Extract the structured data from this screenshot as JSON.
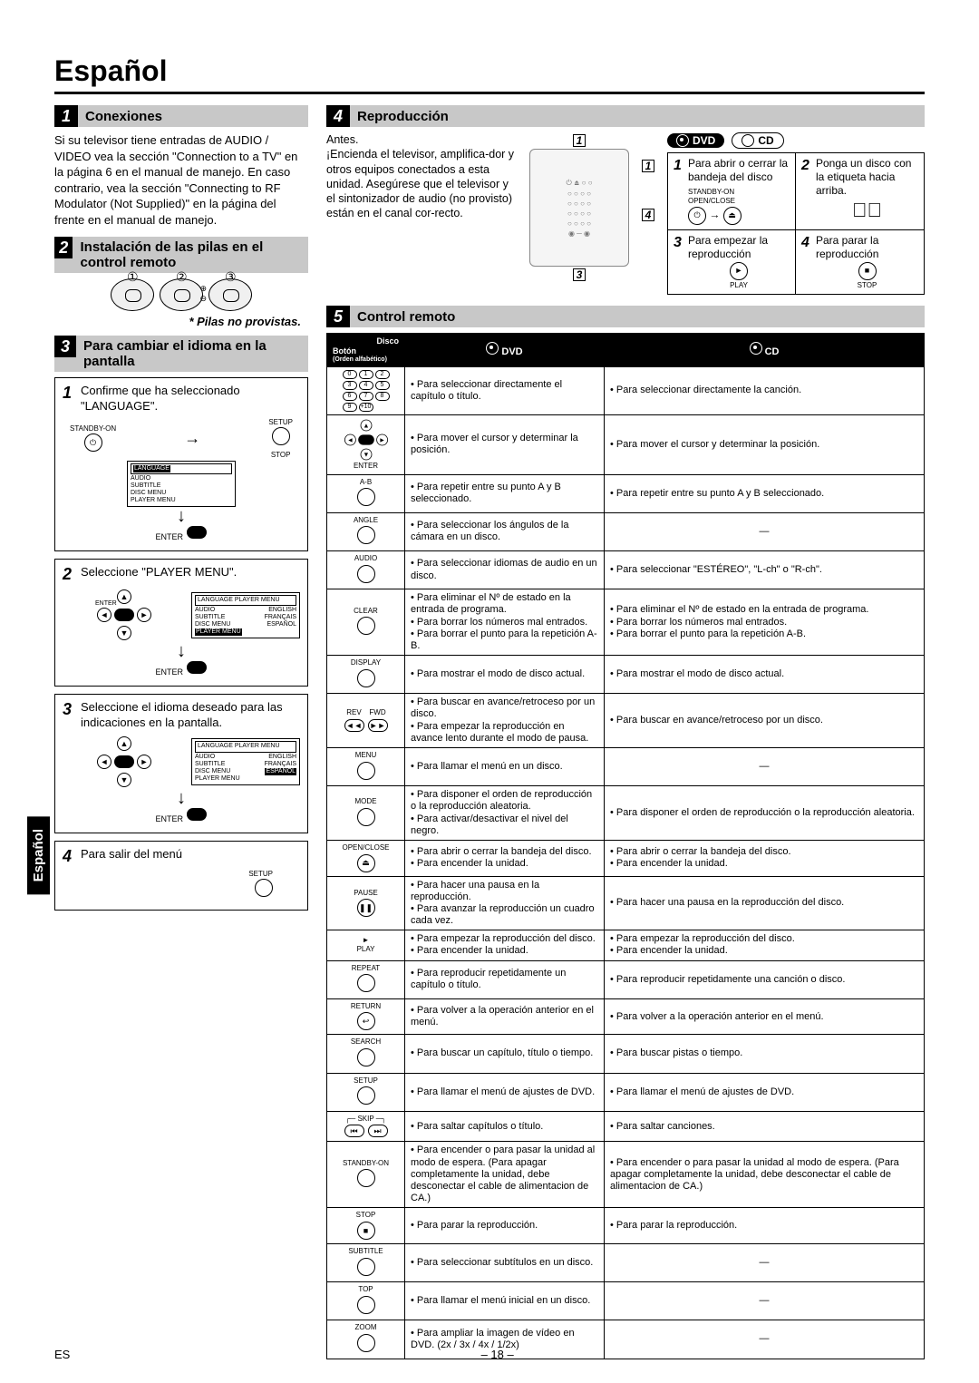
{
  "page": {
    "title": "Español",
    "footer_left": "ES",
    "footer_center": "– 18 –",
    "side_tab": "Español"
  },
  "s1": {
    "num": "1",
    "title": "Conexiones",
    "text": "Si su televisor tiene entradas de AUDIO / VIDEO vea la sección \"Connection to a TV\" en la página 6 en el manual de manejo. En caso contrario, vea la sección \"Connecting to RF Modulator (Not Supplied)\" en la página del frente en el manual de manejo."
  },
  "s2": {
    "num": "2",
    "title": "Instalación de las pilas en el control remoto",
    "note": "* Pilas no provistas."
  },
  "s3": {
    "num": "3",
    "title": "Para cambiar el idioma en la pantalla",
    "step1": {
      "n": "1",
      "text": "Confirme que ha seleccionado \"LANGUAGE\"."
    },
    "step2": {
      "n": "2",
      "text": "Seleccione \"PLAYER MENU\"."
    },
    "step3": {
      "n": "3",
      "text": "Seleccione el idioma deseado para las indicaciones en la pantalla."
    },
    "step4": {
      "n": "4",
      "text": "Para salir del menú"
    },
    "labels": {
      "standby": "STANDBY-ON",
      "setup": "SETUP",
      "stop": "STOP",
      "enter": "ENTER",
      "lang": "LANGUAGE",
      "audio": "AUDIO",
      "subtitle": "SUBTITLE",
      "discmenu": "DISC MENU",
      "playermenu": "PLAYER MENU",
      "english": "ENGLISH",
      "francais": "FRANÇAIS",
      "espanol": "ESPAÑOL",
      "lang_pm": "LANGUAGE  PLAYER MENU"
    }
  },
  "s4": {
    "num": "4",
    "title": "Reproducción",
    "antes": "Antes.",
    "intro": "¡Encienda el televisor, amplifica-dor y otros equipos conectados a esta unidad. Asegúrese que el televisor y el sintonizador de audio (no provisto) están en el canal cor-recto.",
    "dvd": "DVD",
    "cd": "CD",
    "g1": "Para abrir o cerrar la bandeja del disco",
    "g2": "Ponga un disco con la etiqueta hacia arriba.",
    "g3": "Para empezar la reproducción",
    "g4": "Para parar la reproducción",
    "g1n": "1",
    "g2n": "2",
    "g3n": "3",
    "g4n": "4",
    "lbl_standby": "STANDBY-ON",
    "lbl_open": "OPEN/CLOSE",
    "lbl_play": "PLAY",
    "lbl_stop": "STOP"
  },
  "s5": {
    "num": "5",
    "title": "Control remoto",
    "head_disc": "Disco",
    "head_boton": "Botón",
    "head_order": "(Orden alfabético)",
    "head_dvd": "DVD",
    "head_cd": "CD",
    "rows": [
      {
        "label": "0-9",
        "dvd": "• Para seleccionar directamente el capítulo o título.",
        "cd": "• Para seleccionar directamente la canción."
      },
      {
        "label": "ARROWS/ENTER",
        "dvd": "• Para mover el cursor y determinar la posición.",
        "cd": "• Para mover el cursor y determinar la posición."
      },
      {
        "label": "A-B",
        "dvd": "• Para repetir entre su punto A y B seleccionado.",
        "cd": "• Para repetir entre su punto A y B seleccionado."
      },
      {
        "label": "ANGLE",
        "dvd": "• Para seleccionar los ángulos de la cámara en un disco.",
        "cd": "—"
      },
      {
        "label": "AUDIO",
        "dvd": "• Para seleccionar idiomas de audio en un disco.",
        "cd": "• Para seleccionar \"ESTÉREO\", \"L-ch\" o \"R-ch\"."
      },
      {
        "label": "CLEAR",
        "dvd": "• Para eliminar el Nº de estado en la entrada de programa.\n• Para borrar los números mal entrados.\n• Para borrar el punto para la repetición A-B.",
        "cd": "• Para eliminar el Nº de estado en la entrada de programa.\n• Para borrar los números mal entrados.\n• Para borrar el punto para la repetición A-B."
      },
      {
        "label": "DISPLAY",
        "dvd": "• Para mostrar el modo de disco actual.",
        "cd": "• Para mostrar el modo de disco actual."
      },
      {
        "label": "REV ◄◄ / FWD ►►",
        "dvd": "• Para buscar en avance/retroceso por un disco.\n• Para empezar la reproducción en avance lento durante el modo de pausa.",
        "cd": "• Para buscar en avance/retroceso por un disco."
      },
      {
        "label": "MENU",
        "dvd": "• Para llamar el menú en un disco.",
        "cd": "—"
      },
      {
        "label": "MODE",
        "dvd": "• Para disponer el orden de reproducción o la reproducción aleatoria.\n• Para activar/desactivar el nivel del negro.",
        "cd": "• Para disponer el orden de reproducción o la reproducción aleatoria."
      },
      {
        "label": "OPEN/CLOSE ⏏",
        "dvd": "• Para abrir o cerrar la bandeja del disco.\n• Para encender la unidad.",
        "cd": "• Para abrir o cerrar la bandeja del disco.\n• Para encender la unidad."
      },
      {
        "label": "PAUSE ⏸",
        "dvd": "• Para hacer una pausa en la reproducción.\n• Para avanzar la reproducción un cuadro cada vez.",
        "cd": "• Para hacer una pausa en la reproducción del disco."
      },
      {
        "label": "► PLAY",
        "dvd": "• Para empezar la reproducción del disco.\n• Para encender la unidad.",
        "cd": "• Para empezar la reproducción del disco.\n• Para encender la unidad."
      },
      {
        "label": "REPEAT",
        "dvd": "• Para reproducir repetidamente un capítulo o título.",
        "cd": "• Para reproducir repetidamente una canción o disco."
      },
      {
        "label": "RETURN ↩",
        "dvd": "• Para volver a la operación anterior en el menú.",
        "cd": "• Para volver a la operación anterior en el menú."
      },
      {
        "label": "SEARCH MODE",
        "dvd": "• Para buscar un capítulo, título o tiempo.",
        "cd": "• Para buscar pistas o tiempo."
      },
      {
        "label": "SETUP",
        "dvd": "• Para llamar el menú de ajustes de DVD.",
        "cd": "• Para llamar el menú de ajustes de DVD."
      },
      {
        "label": "SKIP ⏮ ⏭",
        "dvd": "• Para saltar capítulos o título.",
        "cd": "• Para saltar canciones."
      },
      {
        "label": "STANDBY-ON",
        "dvd": "• Para encender o para pasar la unidad al modo de espera. (Para apagar completamente la unidad, debe desconectar el cable de alimentacion de CA.)",
        "cd": "• Para encender o para pasar la unidad al modo de espera. (Para apagar completamente la unidad, debe desconectar el cable de alimentacion de CA.)"
      },
      {
        "label": "STOP ■",
        "dvd": "• Para parar la reproducción.",
        "cd": "• Para parar la reproducción."
      },
      {
        "label": "SUBTITLE",
        "dvd": "• Para seleccionar subtítulos en un disco.",
        "cd": "—"
      },
      {
        "label": "TOP MENU",
        "dvd": "• Para llamar el menú inicial en un disco.",
        "cd": "—"
      },
      {
        "label": "ZOOM",
        "dvd": "• Para ampliar la imagen de vídeo en DVD. (2x / 3x / 4x / 1/2x)",
        "cd": "—"
      }
    ]
  }
}
